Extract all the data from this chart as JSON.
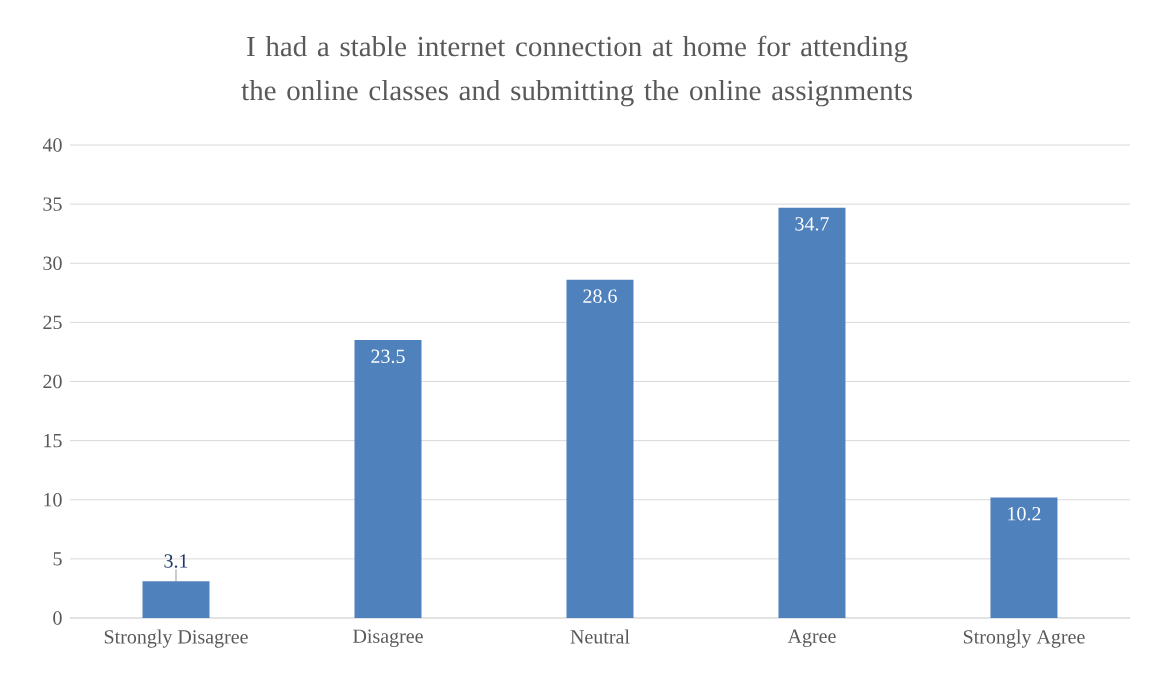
{
  "chart_data": {
    "type": "bar",
    "title": "I had a stable internet connection at home for attending the online classes and submitting the online assignments",
    "categories": [
      "Strongly Disagree",
      "Disagree",
      "Neutral",
      "Agree",
      "Strongly Agree"
    ],
    "values": [
      3.1,
      23.5,
      28.6,
      34.7,
      10.2
    ],
    "color": "#4f81bd",
    "ylim": [
      0,
      40
    ],
    "yticks": [
      0,
      5,
      10,
      15,
      20,
      25,
      30,
      35,
      40
    ],
    "grid": "y",
    "data_labels": true
  }
}
